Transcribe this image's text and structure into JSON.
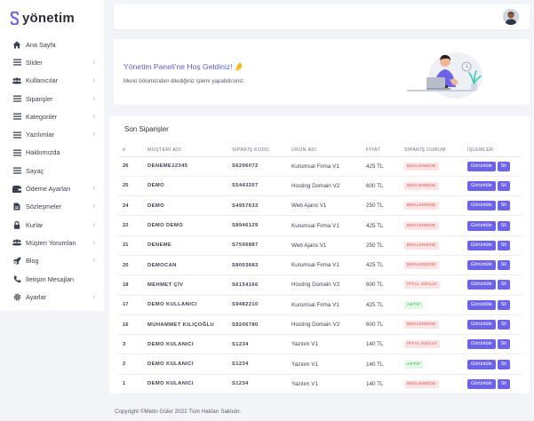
{
  "brand": {
    "name": "yönetim",
    "accent": "#6c63e8"
  },
  "sidebar": {
    "items": [
      {
        "label": "Ana Sayfa",
        "icon": "home-icon",
        "chevron": false
      },
      {
        "label": "Slider",
        "icon": "list-icon",
        "chevron": true
      },
      {
        "label": "Kullanıcılar",
        "icon": "users-icon",
        "chevron": true
      },
      {
        "label": "Siparişler",
        "icon": "list-icon",
        "chevron": true
      },
      {
        "label": "Kategoriler",
        "icon": "list-icon",
        "chevron": true
      },
      {
        "label": "Yazılımlar",
        "icon": "list-icon",
        "chevron": true
      },
      {
        "label": "Hakkımızda",
        "icon": "list-icon",
        "chevron": false
      },
      {
        "label": "Sayaç",
        "icon": "list-icon",
        "chevron": false
      },
      {
        "label": "Ödeme Ayarları",
        "icon": "wallet-icon",
        "chevron": true
      },
      {
        "label": "Sözleşmeler",
        "icon": "file-icon",
        "chevron": true
      },
      {
        "label": "Kurlar",
        "icon": "lock-icon",
        "chevron": true
      },
      {
        "label": "Müşteri Yorumları",
        "icon": "users-icon",
        "chevron": true
      },
      {
        "label": "Blog",
        "icon": "rocket-icon",
        "chevron": true
      },
      {
        "label": "İletişim Mesajları",
        "icon": "phone-icon",
        "chevron": false
      },
      {
        "label": "Ayarlar",
        "icon": "gear-icon",
        "chevron": true
      }
    ]
  },
  "welcome": {
    "title": "Yönetim Paneli'ne Hoş Geldiniz! 🤌",
    "subtitle": "Menü bölümünden dilediğiniz işlemi yapabilirsiniz."
  },
  "orders": {
    "title": "Son Siparişler",
    "columns": [
      "#",
      "MÜŞTERİ ADI",
      "SİPARİŞ KODU",
      "ÜRÜN ADI",
      "FİYAT",
      "SİPARİŞ DURUM",
      "İŞLEMLER"
    ],
    "view_label": "Görüntüle",
    "delete_label": "Sil",
    "rows": [
      {
        "id": "26",
        "customer": "DENEME12345",
        "code": "S6206072",
        "product": "Kurumsal Firma V1",
        "price": "425 TL",
        "status": "BEKLEMEDE",
        "status_type": "wait"
      },
      {
        "id": "25",
        "customer": "DEMO",
        "code": "S5443207",
        "product": "Hosting Domain V2",
        "price": "600 TL",
        "status": "BEKLEMEDE",
        "status_type": "wait"
      },
      {
        "id": "24",
        "customer": "DEMO",
        "code": "S4957633",
        "product": "Web Ajans V1",
        "price": "250 TL",
        "status": "BEKLEMEDE",
        "status_type": "wait"
      },
      {
        "id": "22",
        "customer": "DEMO DEMO",
        "code": "S8946129",
        "product": "Kurumsal Firma V1",
        "price": "425 TL",
        "status": "BEKLEMEDE",
        "status_type": "wait"
      },
      {
        "id": "21",
        "customer": "DENEME",
        "code": "S7506887",
        "product": "Web Ajans V1",
        "price": "250 TL",
        "status": "BEKLEMEDE",
        "status_type": "wait"
      },
      {
        "id": "20",
        "customer": "DEMOCAN",
        "code": "S8003683",
        "product": "Kurumsal Firma V1",
        "price": "425 TL",
        "status": "BEKLEMEDE",
        "status_type": "wait"
      },
      {
        "id": "18",
        "customer": "MEHMET ÇİV",
        "code": "S6154166",
        "product": "Hosting Domain V2",
        "price": "600 TL",
        "status": "İPTAL EDİLDİ",
        "status_type": "cancel"
      },
      {
        "id": "17",
        "customer": "DEMO KULLANICI",
        "code": "S9482210",
        "product": "Kurumsal Firma V1",
        "price": "425 TL",
        "status": "AKTİF",
        "status_type": "ok"
      },
      {
        "id": "16",
        "customer": "MUHAMMET KILIÇOĞLU",
        "code": "S9206780",
        "product": "Hosting Domain V2",
        "price": "600 TL",
        "status": "BEKLEMEDE",
        "status_type": "wait"
      },
      {
        "id": "3",
        "customer": "DEMO KULANICI",
        "code": "S1234",
        "product": "Yazılım V1",
        "price": "140 TL",
        "status": "İPTAL EDİLDİ",
        "status_type": "cancel"
      },
      {
        "id": "2",
        "customer": "DEMO KULANICI",
        "code": "S1234",
        "product": "Yazılım V1",
        "price": "140 TL",
        "status": "AKTİF",
        "status_type": "ok"
      },
      {
        "id": "1",
        "customer": "DEMO KULANICI",
        "code": "S1234",
        "product": "Yazılım V1",
        "price": "140 TL",
        "status": "BEKLEMEDE",
        "status_type": "wait"
      }
    ]
  },
  "footer": {
    "copyright": "Copyright ©Metin Güler 2022 Tüm Hakları Saklıdır."
  }
}
